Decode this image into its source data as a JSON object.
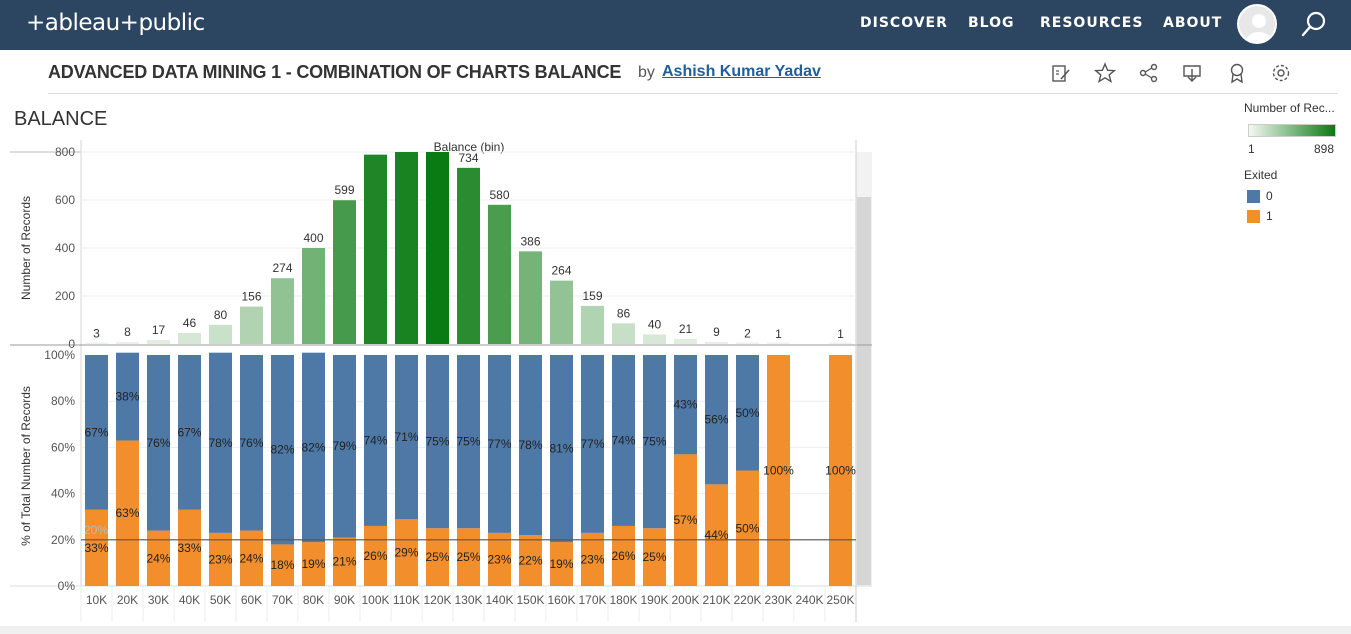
{
  "nav": {
    "logo": "+ableau+public",
    "items": [
      "DISCOVER",
      "BLOG",
      "RESOURCES",
      "ABOUT"
    ]
  },
  "viz": {
    "title": "ADVANCED DATA MINING 1 - COMBINATION OF CHARTS BALANCE",
    "by": "by",
    "author": "Ashish Kumar Yadav"
  },
  "sheet": {
    "title": "BALANCE"
  },
  "legend": {
    "count_title": "Number of Rec...",
    "count_min": "1",
    "count_max": "898",
    "exited_title": "Exited",
    "exited_items": [
      {
        "label": "0",
        "color": "#4e79a7"
      },
      {
        "label": "1",
        "color": "#f28e2b"
      }
    ]
  },
  "chart_data": [
    {
      "type": "bar",
      "title": "Balance (bin)",
      "xlabel": "",
      "ylabel": "Number of Records",
      "ylim": [
        0,
        800
      ],
      "yticks": [
        "0",
        "200",
        "400",
        "600",
        "800"
      ],
      "categories": [
        "10K",
        "20K",
        "30K",
        "40K",
        "50K",
        "60K",
        "70K",
        "80K",
        "90K",
        "100K",
        "110K",
        "120K",
        "130K",
        "140K",
        "150K",
        "160K",
        "170K",
        "180K",
        "190K",
        "200K",
        "210K",
        "220K",
        "230K",
        "240K",
        "250K"
      ],
      "values": [
        3,
        8,
        17,
        46,
        80,
        156,
        274,
        400,
        599,
        789,
        815,
        898,
        734,
        580,
        386,
        264,
        159,
        86,
        40,
        21,
        9,
        2,
        1,
        null,
        1
      ],
      "labels": [
        "3",
        "8",
        "17",
        "46",
        "80",
        "156",
        "274",
        "400",
        "599",
        "",
        "",
        "",
        "734",
        "580",
        "386",
        "264",
        "159",
        "86",
        "40",
        "21",
        "9",
        "2",
        "1",
        "",
        "1"
      ],
      "color_scale": {
        "min": 1,
        "max": 898,
        "low": "#eef4ec",
        "high": "#0a7a12"
      }
    },
    {
      "type": "bar",
      "stacked": true,
      "ylabel": "% of Total Number of Records",
      "ylim": [
        0,
        100
      ],
      "yticks": [
        "0%",
        "20%",
        "40%",
        "60%",
        "80%",
        "100%"
      ],
      "reference_line": {
        "value": 20,
        "label": "20%"
      },
      "categories": [
        "10K",
        "20K",
        "30K",
        "40K",
        "50K",
        "60K",
        "70K",
        "80K",
        "90K",
        "100K",
        "110K",
        "120K",
        "130K",
        "140K",
        "150K",
        "160K",
        "170K",
        "180K",
        "190K",
        "200K",
        "210K",
        "220K",
        "230K",
        "240K",
        "250K"
      ],
      "series": [
        {
          "name": "1",
          "color": "#f28e2b",
          "values": [
            33,
            63,
            24,
            33,
            23,
            24,
            18,
            19,
            21,
            26,
            29,
            25,
            25,
            23,
            22,
            19,
            23,
            26,
            25,
            57,
            44,
            50,
            100,
            null,
            100
          ],
          "labels": [
            "33%",
            "63%",
            "24%",
            "33%",
            "23%",
            "24%",
            "18%",
            "19%",
            "21%",
            "26%",
            "29%",
            "25%",
            "25%",
            "23%",
            "22%",
            "19%",
            "23%",
            "26%",
            "25%",
            "57%",
            "44%",
            "50%",
            "100%",
            "",
            "100%"
          ]
        },
        {
          "name": "0",
          "color": "#4e79a7",
          "values": [
            67,
            38,
            76,
            67,
            78,
            76,
            82,
            82,
            79,
            74,
            71,
            75,
            75,
            77,
            78,
            81,
            77,
            74,
            75,
            43,
            56,
            50,
            0,
            null,
            0
          ],
          "labels": [
            "67%",
            "38%",
            "76%",
            "67%",
            "78%",
            "76%",
            "82%",
            "82%",
            "79%",
            "74%",
            "71%",
            "75%",
            "75%",
            "77%",
            "78%",
            "81%",
            "77%",
            "74%",
            "75%",
            "43%",
            "56%",
            "50%",
            "",
            "",
            ""
          ]
        }
      ]
    }
  ]
}
